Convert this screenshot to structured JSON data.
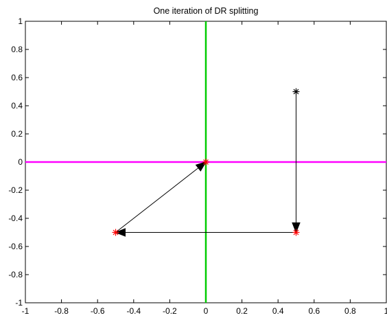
{
  "chart_data": {
    "type": "line",
    "title": "One iteration of DR splitting",
    "xlabel": "",
    "ylabel": "",
    "xlim": [
      -1,
      1
    ],
    "ylim": [
      -1,
      1
    ],
    "xticks": [
      -1,
      -0.8,
      -0.6,
      -0.4,
      -0.2,
      0,
      0.2,
      0.4,
      0.6,
      0.8,
      1
    ],
    "yticks": [
      -1,
      -0.8,
      -0.6,
      -0.4,
      -0.2,
      0,
      0.2,
      0.4,
      0.6,
      0.8,
      1
    ],
    "xtick_labels": [
      "-1",
      "-0.8",
      "-0.6",
      "-0.4",
      "-0.2",
      "0",
      "0.2",
      "0.4",
      "0.6",
      "0.8",
      "1"
    ],
    "ytick_labels": [
      "-1",
      "-0.8",
      "-0.6",
      "-0.4",
      "-0.2",
      "0",
      "0.2",
      "0.4",
      "0.6",
      "0.8",
      "1"
    ],
    "grid": false,
    "lines": [
      {
        "orientation": "horizontal",
        "value": 0,
        "color": "#ff00ff"
      },
      {
        "orientation": "vertical",
        "value": 0,
        "color": "#00cc00"
      }
    ],
    "arrows": [
      {
        "from": [
          0.5,
          0.5
        ],
        "to": [
          0.5,
          -0.5
        ],
        "color": "#000000"
      },
      {
        "from": [
          0.5,
          -0.5
        ],
        "to": [
          -0.5,
          -0.5
        ],
        "color": "#000000"
      },
      {
        "from": [
          -0.5,
          -0.5
        ],
        "to": [
          0,
          0
        ],
        "color": "#000000"
      }
    ],
    "points": [
      {
        "x": 0.5,
        "y": 0.5,
        "marker": "asterisk",
        "color": "#000000"
      },
      {
        "x": 0.5,
        "y": -0.5,
        "marker": "asterisk",
        "color": "#ff0000"
      },
      {
        "x": -0.5,
        "y": -0.5,
        "marker": "asterisk",
        "color": "#ff0000"
      },
      {
        "x": 0,
        "y": 0,
        "marker": "asterisk",
        "color": "#ff0000"
      }
    ]
  }
}
